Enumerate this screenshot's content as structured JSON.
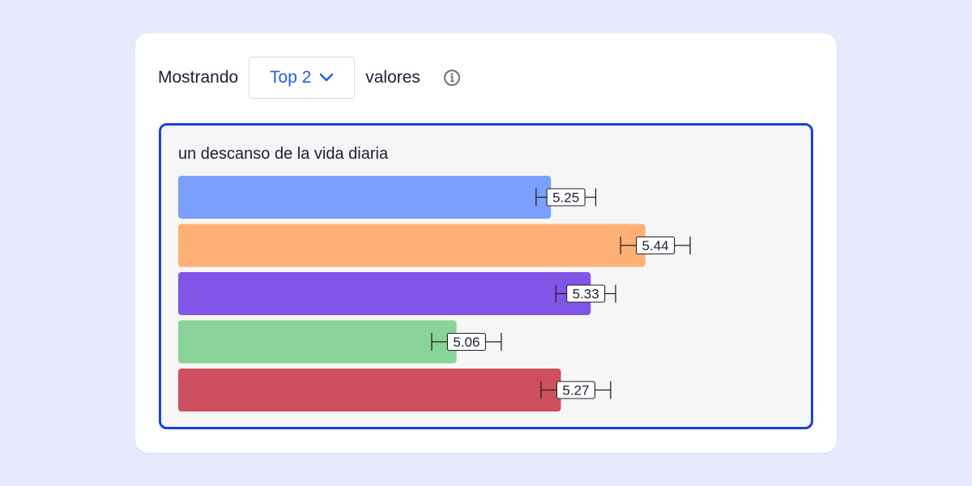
{
  "controls": {
    "prefix": "Mostrando",
    "select_value": "Top 2",
    "suffix": "valores"
  },
  "icons": {
    "dropdown": "chevron-down-icon",
    "info": "info-icon"
  },
  "colors": {
    "accent": "#1f5bea",
    "panel_border": "#1842e0"
  },
  "chart_data": {
    "type": "bar",
    "orientation": "horizontal",
    "title": "un descanso de la vida diaria",
    "series": [
      {
        "label": "5.25",
        "value": 5.25,
        "err_low": 5.22,
        "err_high": 5.34,
        "color": "#7b9ffc"
      },
      {
        "label": "5.44",
        "value": 5.44,
        "err_low": 5.39,
        "err_high": 5.53,
        "color": "#feb077"
      },
      {
        "label": "5.33",
        "value": 5.33,
        "err_low": 5.26,
        "err_high": 5.38,
        "color": "#8155e6"
      },
      {
        "label": "5.06",
        "value": 5.06,
        "err_low": 5.01,
        "err_high": 5.15,
        "color": "#8ad398"
      },
      {
        "label": "5.27",
        "value": 5.27,
        "err_low": 5.23,
        "err_high": 5.37,
        "color": "#cd4f60"
      }
    ]
  }
}
